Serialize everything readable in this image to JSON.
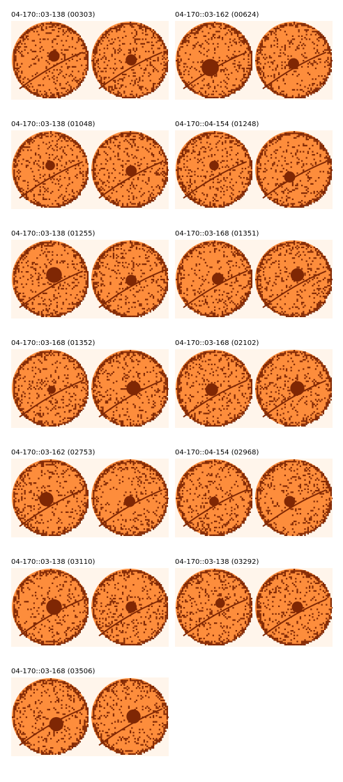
{
  "colors": {
    "background": "#fff5eb",
    "disc": "#fd8d3c",
    "speckle": "#7f2704",
    "shadow": "#a63603"
  },
  "panels": [
    {
      "title": "04-170::03-138 (00303)"
    },
    {
      "title": "04-170::03-162 (00624)"
    },
    {
      "title": "04-170::03-138 (01048)"
    },
    {
      "title": "04-170::04-154 (01248)"
    },
    {
      "title": "04-170::03-138 (01255)"
    },
    {
      "title": "04-170::03-168 (01351)"
    },
    {
      "title": "04-170::03-168 (01352)"
    },
    {
      "title": "04-170::03-168 (02102)"
    },
    {
      "title": "04-170::03-162 (02753)"
    },
    {
      "title": "04-170::04-154 (02968)"
    },
    {
      "title": "04-170::03-138 (03110)"
    },
    {
      "title": "04-170::03-138 (03292)"
    },
    {
      "title": "04-170::03-168 (03506)"
    }
  ]
}
